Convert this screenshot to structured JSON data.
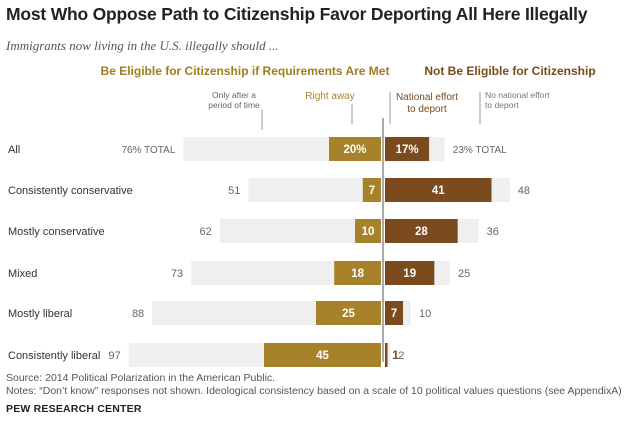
{
  "title": "Most Who Oppose Path to Citizenship Favor Deporting All Here Illegally",
  "subtitle": "Immigrants now living in the U.S. illegally should ...",
  "footer": {
    "source": "Source: 2014 Political Polarization in the American Public.",
    "notes": "Notes: “Don’t know” responses not shown. Ideological consistency based on a scale of 10 political values questions (see AppendixA)",
    "brand": "PEW RESEARCH CENTER"
  },
  "colors": {
    "eligible_group": "#a17c22",
    "not_eligible_group": "#7a4a1a",
    "right_away": "#a8822b",
    "national_effort": "#7b4a1f",
    "remainder": "#efefef"
  },
  "chart_data": {
    "type": "bar",
    "orientation": "horizontal-diverging",
    "group_labels": {
      "left": "Be Eligible for Citizenship if Requirements Are Met",
      "right": "Not Be Eligible for Citizenship"
    },
    "legend": {
      "only_after": "Only after a period of time",
      "right_away": "Right away",
      "national_effort": "National effort to deport",
      "no_national_effort": "No national effort to deport"
    },
    "categories": [
      "All",
      "Consistently conservative",
      "Mostly conservative",
      "Mixed",
      "Mostly liberal",
      "Consistently liberal"
    ],
    "series": [
      {
        "name": "Right away",
        "values": [
          20,
          7,
          10,
          18,
          25,
          45
        ]
      },
      {
        "name": "National effort to deport",
        "values": [
          17,
          41,
          28,
          19,
          7,
          1
        ]
      }
    ],
    "eligible_totals": [
      76,
      51,
      62,
      73,
      88,
      97
    ],
    "not_eligible_totals": [
      23,
      48,
      36,
      25,
      10,
      2
    ],
    "total_suffix": "% TOTAL",
    "all_total_suffix": " TOTAL",
    "percent_sign": "%"
  }
}
